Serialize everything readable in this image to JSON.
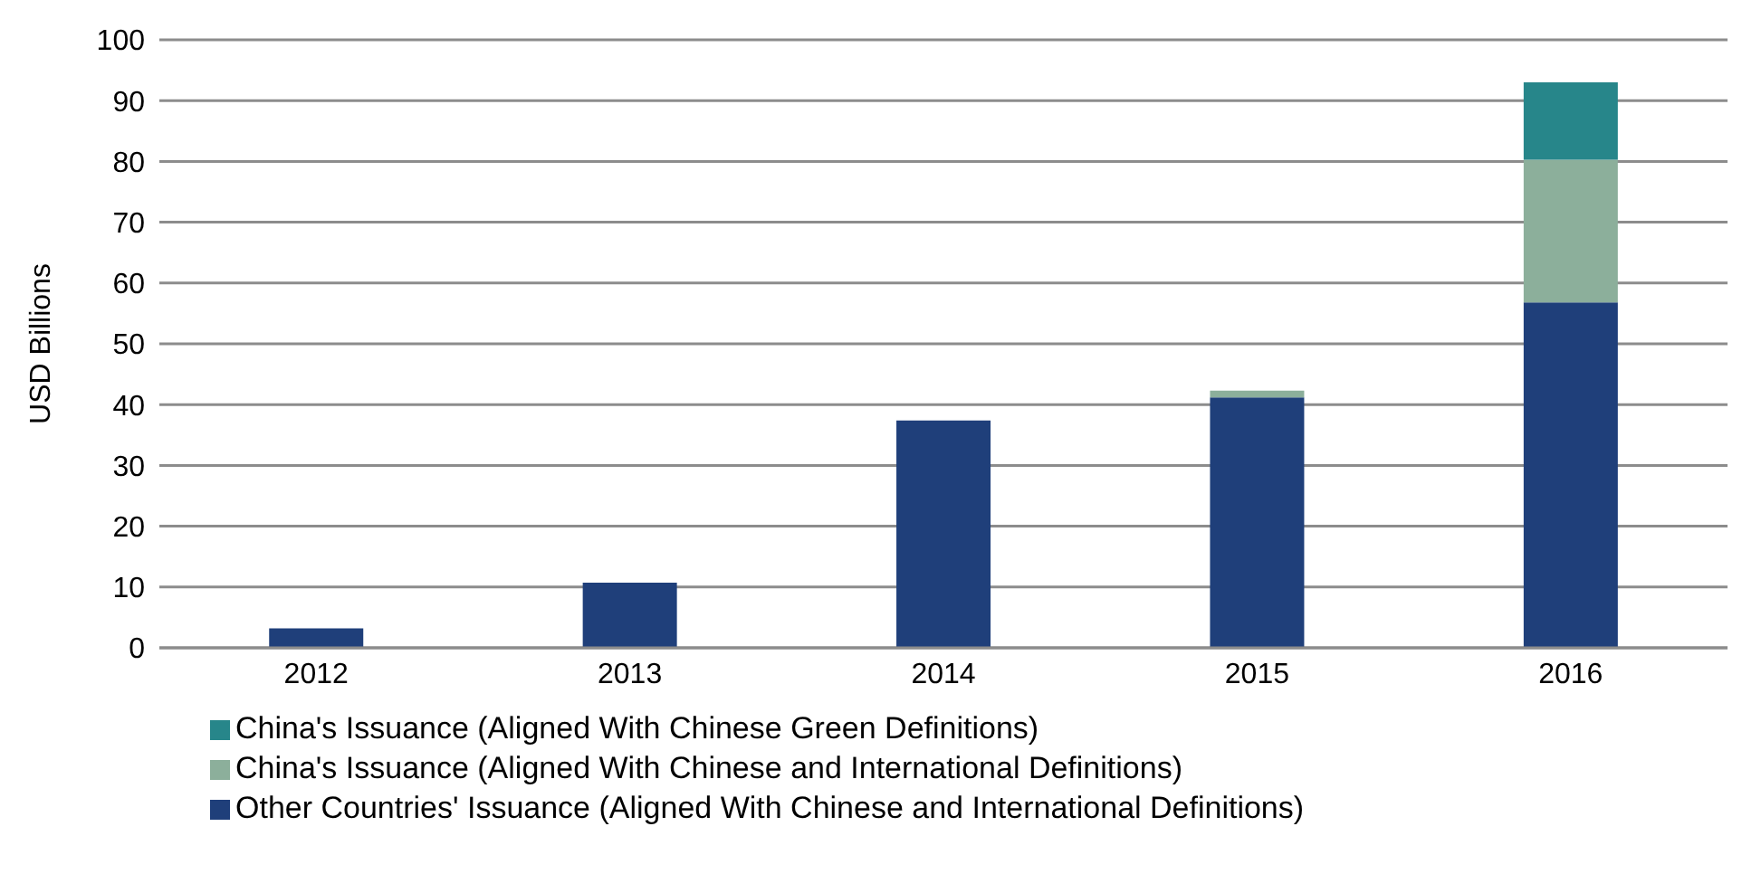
{
  "chart_data": {
    "type": "bar",
    "stacked": true,
    "ylabel": "USD Billions",
    "categories": [
      "2012",
      "2013",
      "2014",
      "2015",
      "2016"
    ],
    "series": [
      {
        "name": "Other Countries' Issuance (Aligned With Chinese and International Definitions)",
        "color": "#1f3f7a",
        "values": [
          3.2,
          10.7,
          37.4,
          41.2,
          56.8
        ]
      },
      {
        "name": "China's Issuance (Aligned With Chinese and International Definitions)",
        "color": "#8caf9b",
        "values": [
          null,
          null,
          null,
          1.1,
          23.5
        ]
      },
      {
        "name": "China's Issuance (Aligned With Chinese Green Definitions)",
        "color": "#27868a",
        "values": [
          null,
          null,
          null,
          null,
          12.7
        ]
      }
    ],
    "ylim": [
      0,
      100
    ],
    "yticks": [
      0,
      10,
      20,
      30,
      40,
      50,
      60,
      70,
      80,
      90,
      100
    ],
    "grid": "y",
    "legend": "bottom"
  }
}
